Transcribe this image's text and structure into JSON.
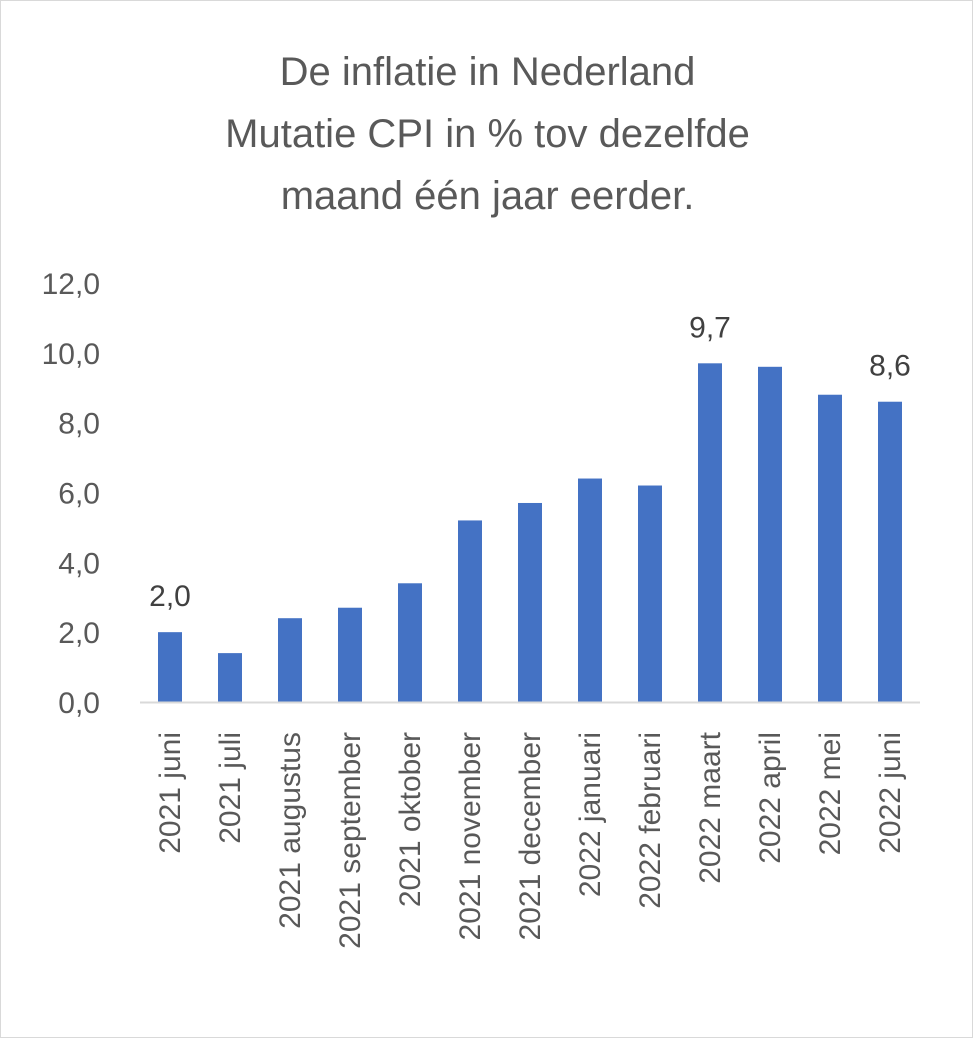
{
  "chart_data": {
    "type": "bar",
    "title_lines": [
      "De inflatie in Nederland",
      "Mutatie CPI in % tov dezelfde",
      "maand één jaar eerder."
    ],
    "categories": [
      "2021 juni",
      "2021 juli",
      "2021 augustus",
      "2021 september",
      "2021 oktober",
      "2021 november",
      "2021 december",
      "2022 januari",
      "2022 februari",
      "2022 maart",
      "2022 april",
      "2022 mei",
      "2022 juni"
    ],
    "series": [
      {
        "values": [
          2.0,
          1.4,
          2.4,
          2.7,
          3.4,
          5.2,
          5.7,
          6.4,
          6.2,
          9.7,
          9.6,
          8.8,
          8.6
        ],
        "color": "#4472c4"
      }
    ],
    "data_labels": [
      {
        "index": 0,
        "text": "2,0"
      },
      {
        "index": 9,
        "text": "9,7"
      },
      {
        "index": 12,
        "text": "8,6"
      }
    ],
    "y_ticks": [
      "0,0",
      "2,0",
      "4,0",
      "6,0",
      "8,0",
      "10,0",
      "12,0"
    ],
    "ylim": [
      0,
      12
    ],
    "xlabel": "",
    "ylabel": "",
    "grid": false,
    "legend": "none"
  }
}
